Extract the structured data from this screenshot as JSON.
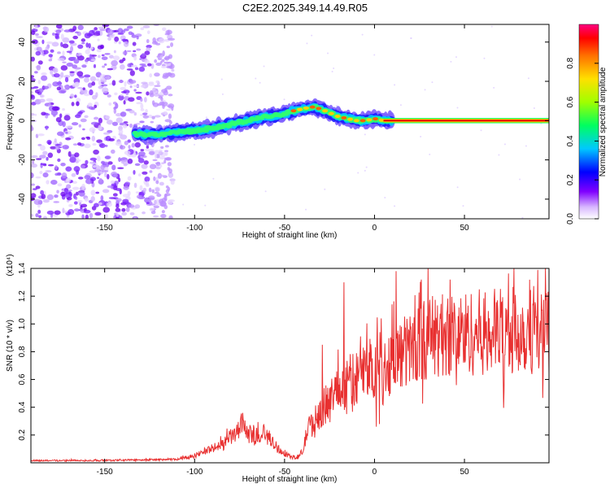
{
  "title": "C2E2.2025.349.14.49.R05",
  "colors": {
    "snr_line": "#e83030",
    "ridge": "#2020ff",
    "background": "#ffffff"
  },
  "chart_data": [
    {
      "type": "heatmap",
      "name": "spectrogram",
      "xlabel": "Height of straight line (km)",
      "ylabel": "Frequency (Hz)",
      "xlim": [
        -191,
        97
      ],
      "ylim": [
        -50,
        49
      ],
      "xticks": [
        -150,
        -100,
        -50,
        0,
        50
      ],
      "xtick_labels": [
        "-150",
        "-100",
        "-50",
        "0",
        "50"
      ],
      "yticks": [
        -40,
        -20,
        0,
        20,
        40
      ],
      "ytick_labels": [
        "-40",
        "-20",
        "0",
        "20",
        "40"
      ],
      "ridge_x": [
        -133,
        -120,
        -110,
        -100,
        -90,
        -80,
        -70,
        -60,
        -52,
        -45,
        -40,
        -35,
        -30,
        -25,
        -20,
        -15,
        -10,
        -5,
        0,
        5,
        10,
        20,
        40,
        60,
        80,
        95
      ],
      "ridge_y": [
        -7,
        -7,
        -6,
        -5,
        -4,
        -2,
        0,
        2,
        3,
        5,
        6,
        7,
        6,
        4,
        2,
        1,
        0,
        0,
        1,
        0,
        0,
        0,
        0,
        0,
        0,
        0
      ],
      "noise_region_x": [
        -191,
        -112
      ],
      "colorbar": {
        "label": "Normalized spectral amplitude",
        "range": [
          0,
          1
        ],
        "ticks": [
          0.0,
          0.2,
          0.4,
          0.6,
          0.8
        ],
        "tick_labels": [
          "0.0",
          "0.2",
          "0.4",
          "0.6",
          "0.8"
        ]
      }
    },
    {
      "type": "line",
      "name": "snr",
      "xlabel": "Height of straight line (km)",
      "ylabel": "SNR (10 * v/v)",
      "scale_label": "(x10⁴)",
      "xlim": [
        -191,
        97
      ],
      "ylim": [
        0,
        1.4
      ],
      "xticks": [
        -150,
        -100,
        -50,
        0,
        50
      ],
      "xtick_labels": [
        "-150",
        "-100",
        "-50",
        "0",
        "50"
      ],
      "yticks": [
        0.2,
        0.4,
        0.6,
        0.8,
        1.0,
        1.2,
        1.4
      ],
      "ytick_labels": [
        "0.2",
        "0.4",
        "0.6",
        "0.8",
        "1.0",
        "1.2",
        "1.4"
      ],
      "envelope_x": [
        -191,
        -150,
        -110,
        -100,
        -95,
        -85,
        -78,
        -72,
        -68,
        -62,
        -57,
        -52,
        -48,
        -43,
        -40,
        -37,
        -34,
        -30,
        -25,
        -20,
        -15,
        -10,
        -5,
        0,
        5,
        10,
        15,
        20,
        25,
        30,
        40,
        50,
        60,
        70,
        80,
        90,
        97
      ],
      "envelope_y": [
        0.02,
        0.02,
        0.03,
        0.06,
        0.1,
        0.15,
        0.25,
        0.3,
        0.22,
        0.25,
        0.18,
        0.1,
        0.06,
        0.04,
        0.1,
        0.3,
        0.35,
        0.45,
        0.55,
        0.65,
        0.7,
        0.75,
        0.8,
        0.85,
        0.82,
        0.9,
        0.95,
        1.0,
        1.05,
        1.1,
        1.12,
        1.13,
        1.14,
        1.15,
        1.16,
        1.15,
        1.14
      ],
      "spikes_x": [
        -17,
        12,
        -29,
        26
      ],
      "spikes_y": [
        1.3,
        1.38,
        0.85,
        1.32
      ]
    }
  ]
}
